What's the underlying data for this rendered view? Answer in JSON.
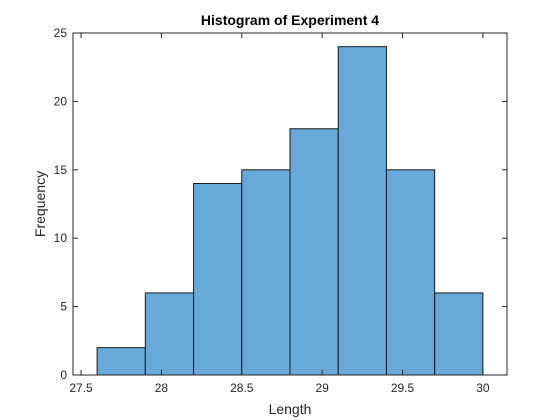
{
  "chart_data": {
    "type": "bar",
    "title": "Histogram of Experiment 4",
    "xlabel": "Length",
    "ylabel": "Frequency",
    "bins": [
      {
        "start": 27.6,
        "end": 27.9,
        "count": 2
      },
      {
        "start": 27.9,
        "end": 28.2,
        "count": 6
      },
      {
        "start": 28.2,
        "end": 28.5,
        "count": 14
      },
      {
        "start": 28.5,
        "end": 28.8,
        "count": 15
      },
      {
        "start": 28.8,
        "end": 29.1,
        "count": 18
      },
      {
        "start": 29.1,
        "end": 29.4,
        "count": 24
      },
      {
        "start": 29.4,
        "end": 29.7,
        "count": 15
      },
      {
        "start": 29.7,
        "end": 30.0,
        "count": 6
      }
    ],
    "xlim": [
      27.45,
      30.15
    ],
    "ylim": [
      0,
      25
    ],
    "xticks": [
      27.5,
      28,
      28.5,
      29,
      29.5,
      30
    ],
    "xtick_labels": [
      "27.5",
      "28",
      "28.5",
      "29",
      "29.5",
      "30"
    ],
    "yticks": [
      0,
      5,
      10,
      15,
      20,
      25
    ],
    "ytick_labels": [
      "0",
      "5",
      "10",
      "15",
      "20",
      "25"
    ],
    "bar_color": "#67a9d9",
    "grid": false,
    "legend": "none"
  }
}
